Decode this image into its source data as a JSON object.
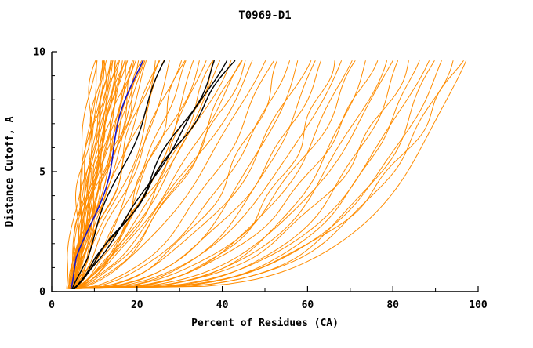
{
  "page": {
    "background": "#ffffff"
  },
  "chart_data": {
    "type": "line",
    "title": "T0969-D1",
    "xlabel": "Percent of Residues (CA)",
    "ylabel": "Distance Cutoff, A",
    "xlim": [
      0,
      100
    ],
    "ylim": [
      0,
      10
    ],
    "grid": false,
    "legend": null,
    "plot_border": "left-bottom",
    "x_tick_values": [
      0,
      20,
      40,
      60,
      80,
      100
    ],
    "x_tick_labels": [
      "0",
      "20",
      "40",
      "60",
      "80",
      "100"
    ],
    "x_minor_ticks": [
      10,
      30,
      50,
      70,
      90
    ],
    "y_tick_values": [
      0,
      5,
      10
    ],
    "y_tick_labels": [
      "0",
      "5",
      "10"
    ],
    "y_minor_ticks": [
      1,
      2,
      3,
      4,
      6,
      7,
      8,
      9
    ],
    "curve_y_range": [
      0.12,
      9.7
    ],
    "curve_encoding": "each curve is [x_at_bottom, x_at_top, shape_exponent]; x(y)=x0+(xe-x0)*t^p with t normalized over curve_y_range",
    "series": [
      {
        "name": "predictions-orange",
        "color": "#FF8C00",
        "stroke_width": 1,
        "curves": [
          [
            3.5,
            10,
            1.1
          ],
          [
            4.0,
            10.5,
            1.05
          ],
          [
            4.0,
            11,
            1.0
          ],
          [
            4.3,
            11.5,
            0.95
          ],
          [
            4.5,
            12,
            1.2
          ],
          [
            3.8,
            12.5,
            0.95
          ],
          [
            4.9,
            12.8,
            1.0
          ],
          [
            4.2,
            13,
            1.05
          ],
          [
            5.0,
            13.5,
            1.15
          ],
          [
            5.2,
            13.8,
            1.08
          ],
          [
            4.6,
            14,
            0.9
          ],
          [
            3.9,
            14.5,
            1.0
          ],
          [
            4.5,
            14.8,
            0.9
          ],
          [
            5.2,
            15,
            1.1
          ],
          [
            4.1,
            15.5,
            0.85
          ],
          [
            5.0,
            15.8,
            1.15
          ],
          [
            4.8,
            16,
            1.0
          ],
          [
            5.5,
            16.5,
            1.2
          ],
          [
            4.2,
            16.8,
            1.0
          ],
          [
            4.3,
            17,
            0.95
          ],
          [
            5.0,
            17.5,
            1.05
          ],
          [
            4.7,
            18,
            0.9
          ],
          [
            5.3,
            18.5,
            1.1
          ],
          [
            4.4,
            19,
            1.0
          ],
          [
            4.8,
            19.5,
            0.95
          ],
          [
            5.1,
            20,
            0.92
          ],
          [
            5.3,
            20.5,
            1.02
          ],
          [
            4.9,
            21,
            1.05
          ],
          [
            4.6,
            21.5,
            0.97
          ],
          [
            5.6,
            22,
            0.98
          ],
          [
            4.2,
            23,
            1.1
          ],
          [
            5.4,
            24,
            0.88
          ],
          [
            4.6,
            25,
            1.0
          ],
          [
            5.0,
            26,
            0.93
          ],
          [
            4.5,
            27,
            0.8
          ],
          [
            5.2,
            28,
            0.7
          ],
          [
            4.8,
            30,
            0.85
          ],
          [
            5.5,
            31,
            0.65
          ],
          [
            4.3,
            32,
            0.75
          ],
          [
            5.0,
            34,
            0.6
          ],
          [
            4.7,
            35,
            0.8
          ],
          [
            5.3,
            36,
            0.7
          ],
          [
            4.9,
            38,
            0.62
          ],
          [
            5.6,
            39,
            0.78
          ],
          [
            4.4,
            40,
            0.68
          ],
          [
            5.1,
            42,
            0.74
          ],
          [
            4.8,
            44,
            0.58
          ],
          [
            5.4,
            45,
            0.72
          ],
          [
            5.0,
            46,
            0.64
          ],
          [
            4.6,
            48,
            0.7
          ],
          [
            5.2,
            50,
            0.6
          ],
          [
            5.0,
            52,
            0.5
          ],
          [
            5.5,
            54,
            0.42
          ],
          [
            4.8,
            56,
            0.48
          ],
          [
            5.2,
            58,
            0.38
          ],
          [
            4.9,
            60,
            0.45
          ],
          [
            5.6,
            62,
            0.35
          ],
          [
            5.1,
            64,
            0.42
          ],
          [
            4.7,
            66,
            0.3
          ],
          [
            5.3,
            68,
            0.4
          ],
          [
            5.0,
            70,
            0.33
          ],
          [
            5.5,
            72,
            0.38
          ],
          [
            4.8,
            74,
            0.28
          ],
          [
            5.2,
            76,
            0.36
          ],
          [
            4.9,
            78,
            0.3
          ],
          [
            5.4,
            80,
            0.34
          ],
          [
            5.1,
            82,
            0.27
          ],
          [
            4.6,
            84,
            0.32
          ],
          [
            5.3,
            86,
            0.26
          ],
          [
            5.0,
            88,
            0.3
          ],
          [
            5.5,
            90,
            0.25
          ],
          [
            5.2,
            92,
            0.28
          ],
          [
            4.8,
            94,
            0.26
          ],
          [
            5.0,
            96,
            0.3
          ],
          [
            5.3,
            97,
            0.24
          ]
        ]
      },
      {
        "name": "highlighted-black",
        "color": "#000000",
        "stroke_width": 1.4,
        "curves": [
          [
            4.8,
            27,
            1.0
          ],
          [
            5.0,
            39,
            0.85
          ],
          [
            5.2,
            41,
            0.9
          ],
          [
            5.4,
            43,
            0.95
          ]
        ]
      },
      {
        "name": "highlighted-blue",
        "color": "#1414CC",
        "stroke_width": 1.6,
        "curves": [
          [
            4.5,
            21,
            1.0
          ]
        ]
      }
    ]
  }
}
